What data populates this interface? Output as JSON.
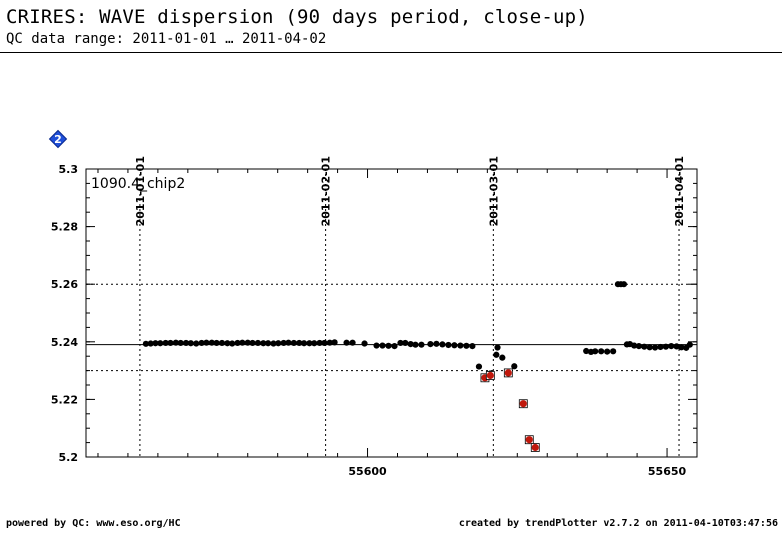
{
  "header": {
    "title": "CRIRES: WAVE dispersion (90 days period, close-up)",
    "subtitle": "QC data range: 2011-01-01 … 2011-04-02"
  },
  "footer": {
    "left": "powered by QC: www.eso.org/HC",
    "right": "created by trendPlotter v2.7.2 on 2011-04-10T03:47:56"
  },
  "badge": {
    "icon": "diamond-2-icon",
    "label": "2",
    "color": "#1f4fd8"
  },
  "chart_data": {
    "type": "scatter",
    "panel_label": "1090.4_chip2",
    "xlim": [
      55553,
      55655
    ],
    "ylim": [
      5.2,
      5.3
    ],
    "x_ticks": [
      55600,
      55650
    ],
    "y_ticks": [
      5.2,
      5.22,
      5.24,
      5.26,
      5.28,
      5.3
    ],
    "y_tick_labels": [
      "5.2",
      "5.22",
      "5.24",
      "5.26",
      "5.28",
      "5.3"
    ],
    "date_markers": [
      {
        "label": "2011-01-01",
        "mjd": 55562
      },
      {
        "label": "2011-02-01",
        "mjd": 55593
      },
      {
        "label": "2011-03-01",
        "mjd": 55621
      },
      {
        "label": "2011-04-01",
        "mjd": 55652
      }
    ],
    "reference_line": 5.239,
    "threshold_lines": [
      5.26,
      5.23
    ],
    "colors": {
      "normal": "#000000",
      "outlier": "#c0180c",
      "reference": "#000000"
    },
    "series": [
      {
        "status": "normal",
        "points": [
          [
            55563.0,
            5.2393
          ],
          [
            55563.8,
            5.2394
          ],
          [
            55564.6,
            5.2395
          ],
          [
            55565.4,
            5.2395
          ],
          [
            55566.3,
            5.2396
          ],
          [
            55567.1,
            5.2396
          ],
          [
            55568.0,
            5.2397
          ],
          [
            55568.8,
            5.2396
          ],
          [
            55569.7,
            5.2396
          ],
          [
            55570.5,
            5.2395
          ],
          [
            55571.4,
            5.2394
          ],
          [
            55572.3,
            5.2396
          ],
          [
            55573.1,
            5.2397
          ],
          [
            55574.0,
            5.2397
          ],
          [
            55574.8,
            5.2396
          ],
          [
            55575.7,
            5.2396
          ],
          [
            55576.6,
            5.2395
          ],
          [
            55577.4,
            5.2394
          ],
          [
            55578.3,
            5.2396
          ],
          [
            55579.1,
            5.2397
          ],
          [
            55580.0,
            5.2397
          ],
          [
            55580.8,
            5.2396
          ],
          [
            55581.7,
            5.2396
          ],
          [
            55582.6,
            5.2395
          ],
          [
            55583.4,
            5.2395
          ],
          [
            55584.3,
            5.2394
          ],
          [
            55585.1,
            5.2395
          ],
          [
            55586.0,
            5.2396
          ],
          [
            55586.8,
            5.2397
          ],
          [
            55587.7,
            5.2396
          ],
          [
            55588.6,
            5.2396
          ],
          [
            55589.4,
            5.2395
          ],
          [
            55590.3,
            5.2395
          ],
          [
            55591.1,
            5.2395
          ],
          [
            55592.0,
            5.2396
          ],
          [
            55592.8,
            5.2396
          ],
          [
            55593.7,
            5.2397
          ],
          [
            55594.5,
            5.2398
          ],
          [
            55596.5,
            5.2397
          ],
          [
            55597.5,
            5.2397
          ],
          [
            55599.5,
            5.2394
          ],
          [
            55601.5,
            5.2387
          ],
          [
            55602.5,
            5.2387
          ],
          [
            55603.5,
            5.2386
          ],
          [
            55604.5,
            5.2385
          ],
          [
            55605.5,
            5.2396
          ],
          [
            55606.3,
            5.2396
          ],
          [
            55607.2,
            5.2392
          ],
          [
            55608.0,
            5.239
          ],
          [
            55609.0,
            5.239
          ],
          [
            55610.5,
            5.2392
          ],
          [
            55611.5,
            5.2393
          ],
          [
            55612.5,
            5.2391
          ],
          [
            55613.5,
            5.2389
          ],
          [
            55614.5,
            5.2388
          ],
          [
            55615.5,
            5.2387
          ],
          [
            55616.5,
            5.2386
          ],
          [
            55617.5,
            5.2385
          ],
          [
            55618.6,
            5.2314
          ],
          [
            55620.5,
            5.229
          ],
          [
            55621.7,
            5.238
          ],
          [
            55621.5,
            5.2355
          ],
          [
            55622.5,
            5.2345
          ],
          [
            55624.5,
            5.2315
          ],
          [
            55636.5,
            5.2368
          ],
          [
            55637.3,
            5.2365
          ],
          [
            55638.0,
            5.2367
          ],
          [
            55639.0,
            5.2367
          ],
          [
            55640.0,
            5.2366
          ],
          [
            55641.0,
            5.2367
          ],
          [
            55641.8,
            5.26
          ],
          [
            55642.3,
            5.26
          ],
          [
            55642.8,
            5.26
          ],
          [
            55643.3,
            5.2391
          ],
          [
            55643.8,
            5.2392
          ],
          [
            55644.5,
            5.2387
          ],
          [
            55645.3,
            5.2385
          ],
          [
            55646.2,
            5.2383
          ],
          [
            55647.1,
            5.2381
          ],
          [
            55648.0,
            5.238
          ],
          [
            55648.9,
            5.2382
          ],
          [
            55649.8,
            5.2383
          ],
          [
            55650.7,
            5.2385
          ],
          [
            55651.6,
            5.2384
          ],
          [
            55652.4,
            5.2381
          ],
          [
            55653.2,
            5.2379
          ],
          [
            55653.8,
            5.239
          ]
        ]
      },
      {
        "status": "outlier",
        "points": [
          [
            55619.6,
            5.2275
          ],
          [
            55620.5,
            5.2283
          ],
          [
            55623.5,
            5.2292
          ],
          [
            55626.0,
            5.2185
          ],
          [
            55627.0,
            5.206
          ],
          [
            55628.0,
            5.2033
          ]
        ]
      }
    ]
  }
}
